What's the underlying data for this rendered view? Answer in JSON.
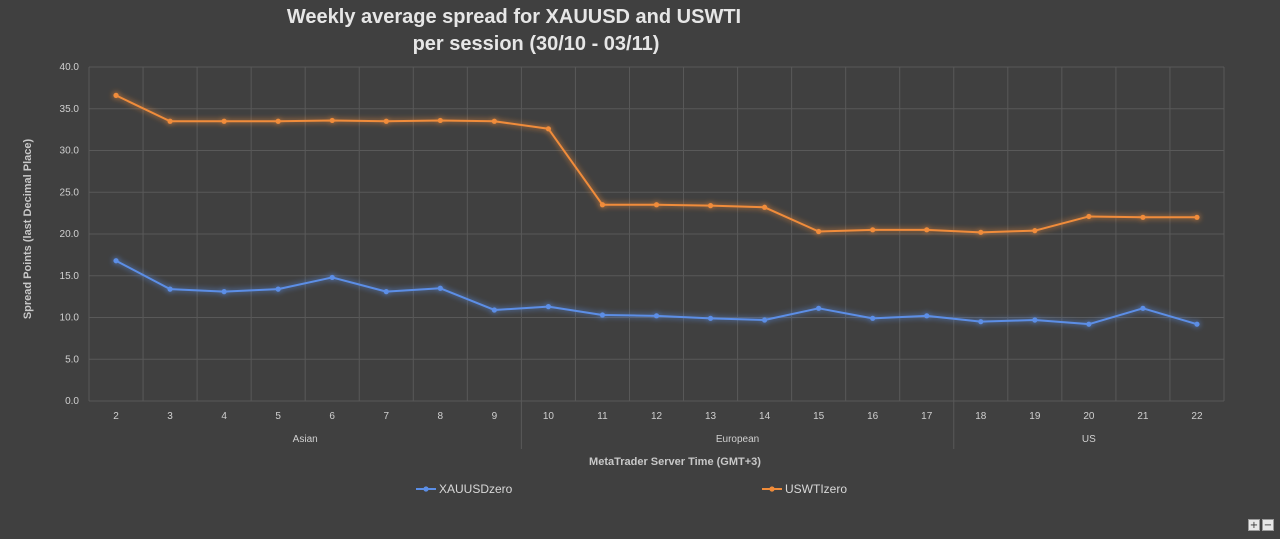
{
  "title_lines": [
    "Weekly average spread for XAUUSD and USWTI",
    "per session (30/10 - 03/11)"
  ],
  "zoom": {
    "plus_label": "+",
    "minus_label": "−"
  },
  "colors": {
    "background": "#404040",
    "grid": "#595959",
    "xauusd": "#5b8ee6",
    "uswti": "#f08c3a"
  },
  "chart_data": {
    "type": "line",
    "title": "Weekly average spread for XAUUSD and USWTI per session (30/10 - 03/11)",
    "xlabel": "MetaTrader Server Time (GMT+3)",
    "ylabel": "Spread Points  (last Decimal Place)",
    "categories": [
      "2",
      "3",
      "4",
      "5",
      "6",
      "7",
      "8",
      "9",
      "10",
      "11",
      "12",
      "13",
      "14",
      "15",
      "16",
      "17",
      "18",
      "19",
      "20",
      "21",
      "22"
    ],
    "sessions": [
      {
        "label": "Asian",
        "from_index": 0,
        "to_index": 7
      },
      {
        "label": "European",
        "from_index": 8,
        "to_index": 15
      },
      {
        "label": "US",
        "from_index": 16,
        "to_index": 20
      }
    ],
    "ylim": [
      0,
      40
    ],
    "yticks": [
      0,
      5,
      10,
      15,
      20,
      25,
      30,
      35,
      40
    ],
    "ytick_labels": [
      "0.0",
      "5.0",
      "10.0",
      "15.0",
      "20.0",
      "25.0",
      "30.0",
      "35.0",
      "40.0"
    ],
    "grid": true,
    "legend_position": "bottom",
    "series": [
      {
        "name": "XAUUSDzero",
        "color": "#5b8ee6",
        "values": [
          16.8,
          13.4,
          13.1,
          13.4,
          14.8,
          13.1,
          13.5,
          10.9,
          11.3,
          10.3,
          10.2,
          9.9,
          9.7,
          11.1,
          9.9,
          10.2,
          9.5,
          9.7,
          9.2,
          11.1,
          9.2
        ]
      },
      {
        "name": "USWTIzero",
        "color": "#f08c3a",
        "values": [
          36.6,
          33.5,
          33.5,
          33.5,
          33.6,
          33.5,
          33.6,
          33.5,
          32.6,
          23.5,
          23.5,
          23.4,
          23.2,
          20.3,
          20.5,
          20.5,
          20.2,
          20.4,
          22.1,
          22.0,
          22.0
        ]
      }
    ]
  }
}
